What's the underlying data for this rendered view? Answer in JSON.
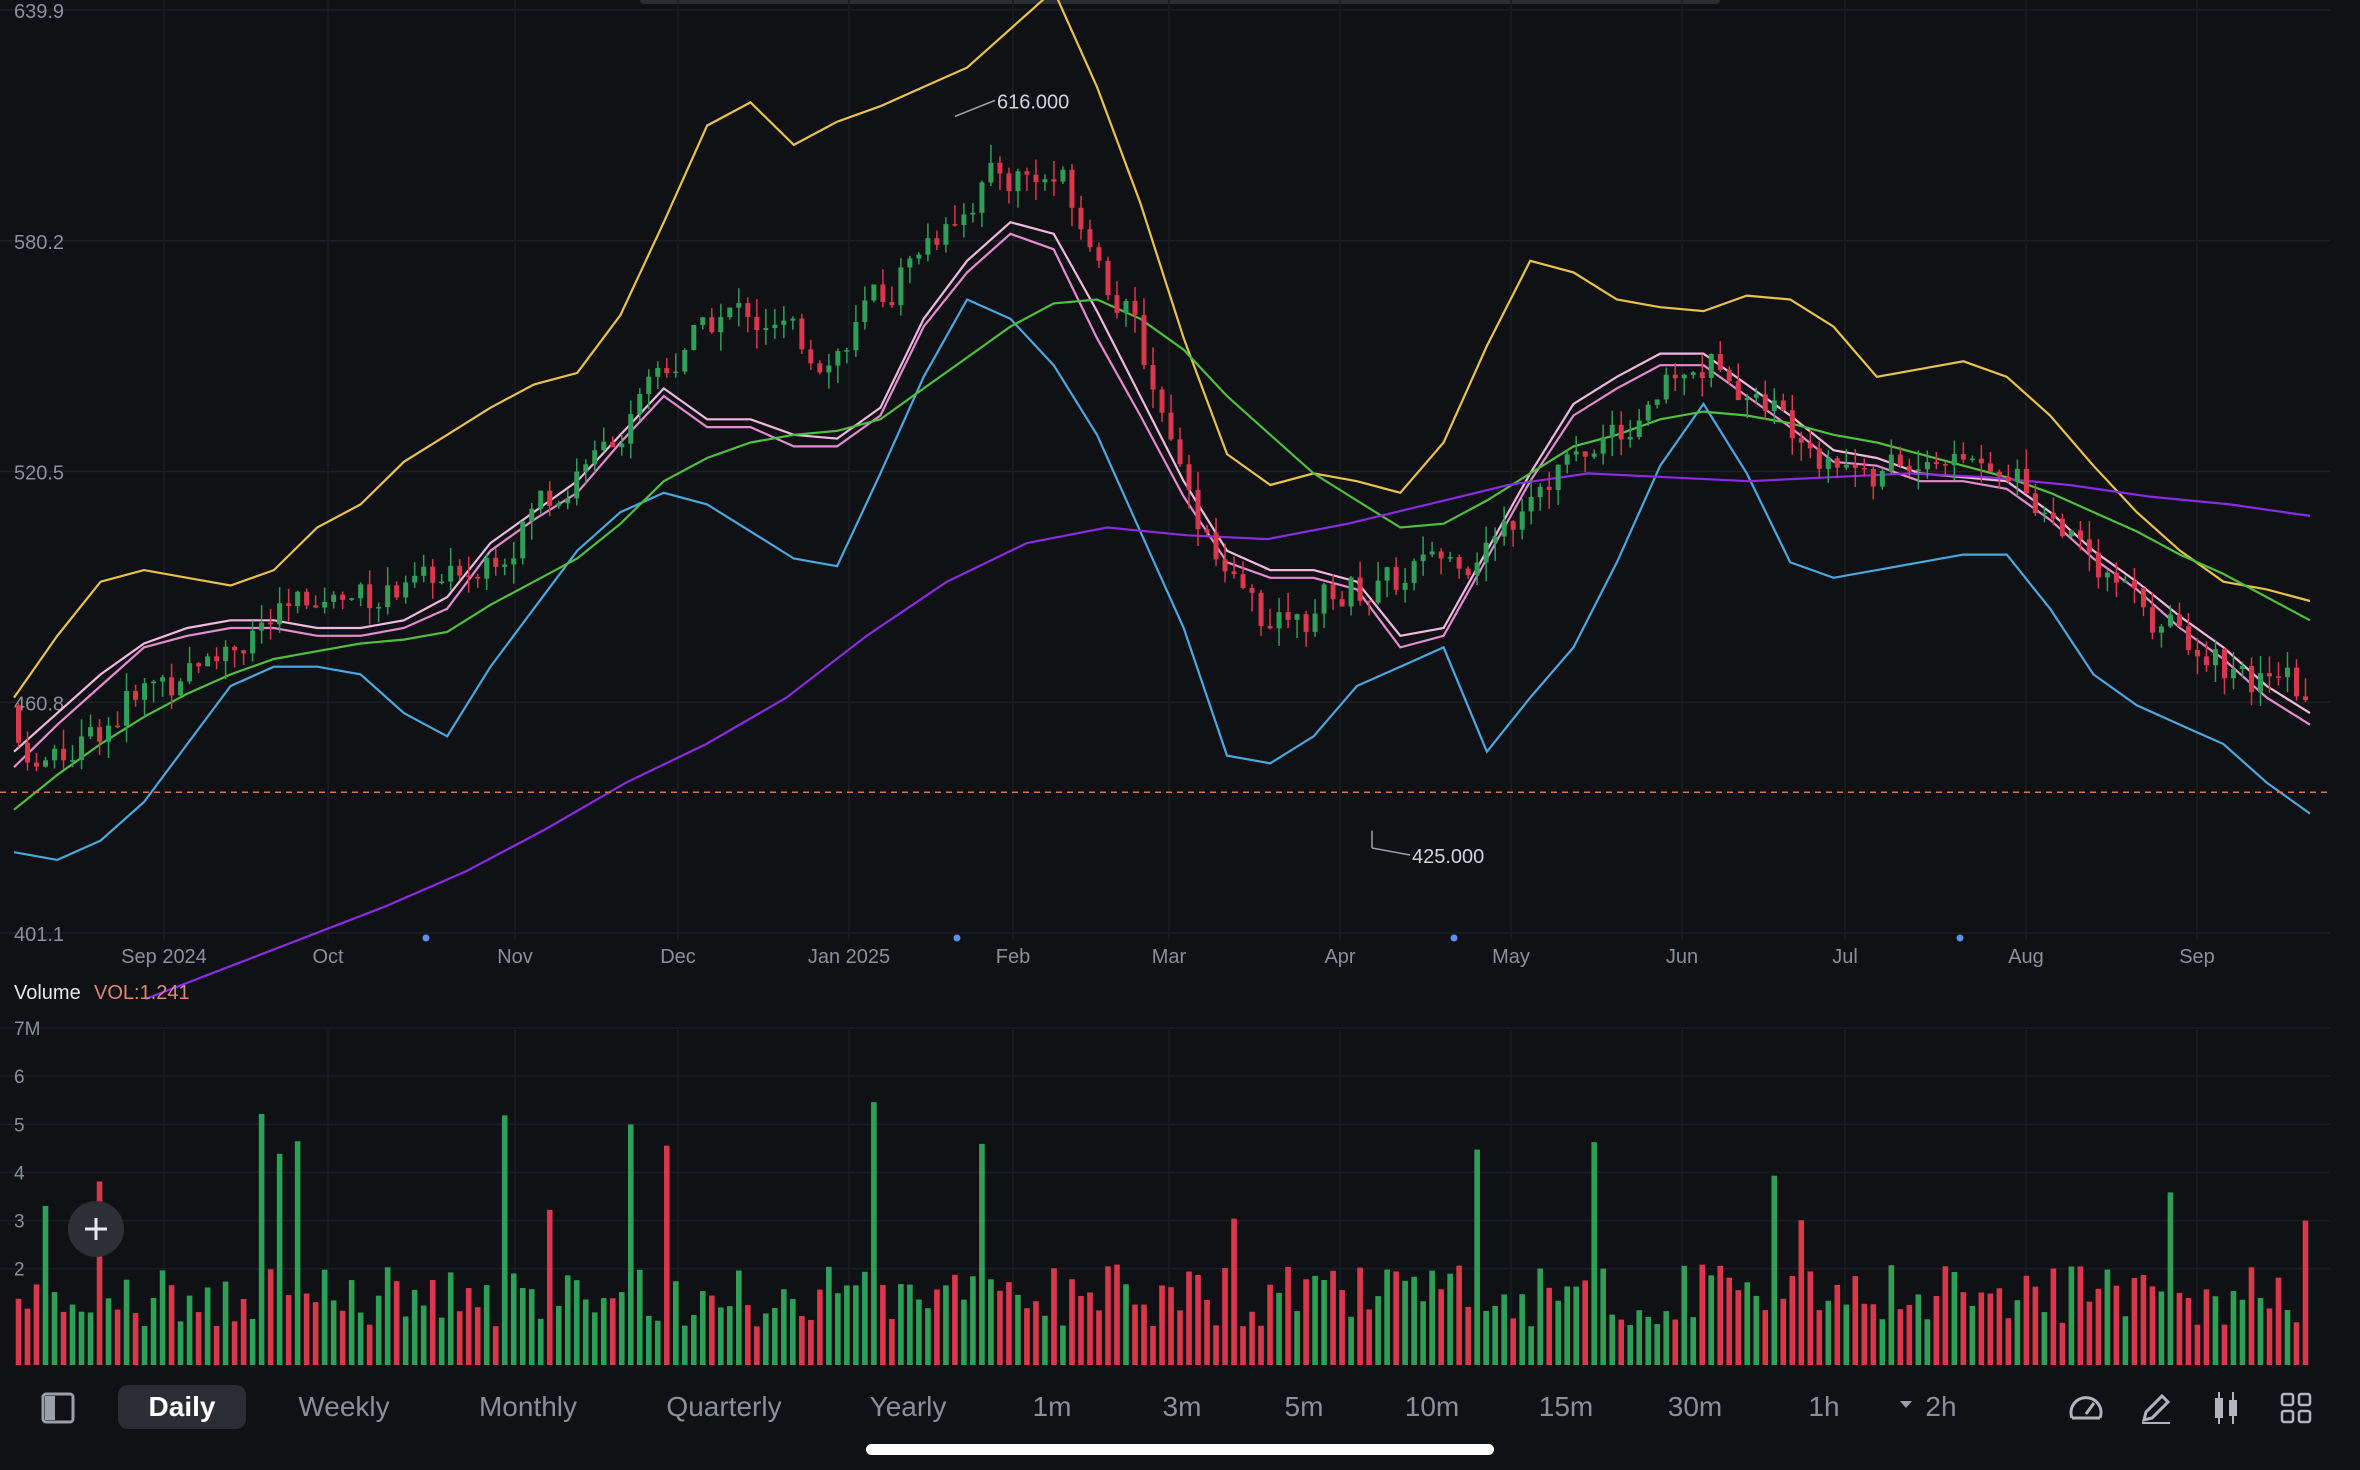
{
  "chart_data": {
    "type": "candlestick",
    "price_axis": {
      "ticks": [
        "639.9",
        "580.2",
        "520.5",
        "460.8",
        "401.1"
      ],
      "range": [
        401.1,
        639.9
      ]
    },
    "x_axis": {
      "labels": [
        "Sep 2024",
        "Oct",
        "Nov",
        "Dec",
        "Jan 2025",
        "Feb",
        "Mar",
        "Apr",
        "May",
        "Jun",
        "Jul",
        "Aug",
        "Sep"
      ]
    },
    "annotations": {
      "high_label": "616.000",
      "low_label": "425.000",
      "high": 616.0,
      "low": 425.0
    },
    "current_price_line": 437.5,
    "volume_panel": {
      "title": "Volume",
      "indicator": "VOL:1.241",
      "ticks": [
        "7M",
        "6",
        "5",
        "4",
        "3",
        "2"
      ],
      "range_millions": [
        0,
        7
      ]
    },
    "series_colors": {
      "up": "#2f9e57",
      "down": "#d9374b",
      "ma_pink": "#e58ad0",
      "ma_pink_light": "#f0b8e0",
      "ma_green": "#4fbf3e",
      "ma_purple": "#8a2be2",
      "boll_upper": "#e8c24a",
      "boll_lower": "#4aa7e0",
      "boll_mid": "#5fb4f0",
      "current_price": "#d9734a"
    },
    "overlays": [
      {
        "name": "boll_upper",
        "points": [
          [
            0,
            462
          ],
          [
            1,
            478
          ],
          [
            2,
            492
          ],
          [
            3,
            495
          ],
          [
            4,
            493
          ],
          [
            5,
            491
          ],
          [
            6,
            495
          ],
          [
            7,
            506
          ],
          [
            8,
            512
          ],
          [
            9,
            523
          ],
          [
            10,
            530
          ],
          [
            11,
            537
          ],
          [
            12,
            543
          ],
          [
            13,
            546
          ],
          [
            14,
            561
          ],
          [
            15,
            585
          ],
          [
            16,
            610
          ],
          [
            17,
            616
          ],
          [
            18,
            605
          ],
          [
            19,
            611
          ],
          [
            20,
            615
          ],
          [
            21,
            620
          ],
          [
            22,
            625
          ],
          [
            23,
            635
          ],
          [
            24,
            645
          ],
          [
            25,
            620
          ],
          [
            26,
            590
          ],
          [
            27,
            555
          ],
          [
            28,
            525
          ],
          [
            29,
            517
          ],
          [
            30,
            520
          ],
          [
            31,
            518
          ],
          [
            32,
            515
          ],
          [
            33,
            528
          ],
          [
            34,
            553
          ],
          [
            35,
            575
          ],
          [
            36,
            572
          ],
          [
            37,
            565
          ],
          [
            38,
            563
          ],
          [
            39,
            562
          ],
          [
            40,
            566
          ],
          [
            41,
            565
          ],
          [
            42,
            558
          ],
          [
            43,
            545
          ],
          [
            44,
            547
          ],
          [
            45,
            549
          ],
          [
            46,
            545
          ],
          [
            47,
            535
          ],
          [
            48,
            522
          ],
          [
            49,
            510
          ],
          [
            50,
            500
          ],
          [
            51,
            492
          ],
          [
            52,
            490
          ],
          [
            53,
            487
          ]
        ]
      },
      {
        "name": "boll_lower",
        "points": [
          [
            0,
            422
          ],
          [
            1,
            420
          ],
          [
            2,
            425
          ],
          [
            3,
            435
          ],
          [
            4,
            450
          ],
          [
            5,
            465
          ],
          [
            6,
            470
          ],
          [
            7,
            470
          ],
          [
            8,
            468
          ],
          [
            9,
            458
          ],
          [
            10,
            452
          ],
          [
            11,
            470
          ],
          [
            12,
            485
          ],
          [
            13,
            500
          ],
          [
            14,
            510
          ],
          [
            15,
            515
          ],
          [
            16,
            512
          ],
          [
            17,
            505
          ],
          [
            18,
            498
          ],
          [
            19,
            496
          ],
          [
            20,
            520
          ],
          [
            21,
            545
          ],
          [
            22,
            565
          ],
          [
            23,
            560
          ],
          [
            24,
            548
          ],
          [
            25,
            530
          ],
          [
            26,
            505
          ],
          [
            27,
            480
          ],
          [
            28,
            447
          ],
          [
            29,
            445
          ],
          [
            30,
            452
          ],
          [
            31,
            465
          ],
          [
            32,
            470
          ],
          [
            33,
            475
          ],
          [
            34,
            448
          ],
          [
            35,
            462
          ],
          [
            36,
            475
          ],
          [
            37,
            497
          ],
          [
            38,
            522
          ],
          [
            39,
            538
          ],
          [
            40,
            520
          ],
          [
            41,
            497
          ],
          [
            42,
            493
          ],
          [
            43,
            495
          ],
          [
            44,
            497
          ],
          [
            45,
            499
          ],
          [
            46,
            499
          ],
          [
            47,
            485
          ],
          [
            48,
            468
          ],
          [
            49,
            460
          ],
          [
            50,
            455
          ],
          [
            51,
            450
          ],
          [
            52,
            440
          ],
          [
            53,
            432
          ]
        ]
      },
      {
        "name": "ma_pink",
        "points": [
          [
            0,
            444
          ],
          [
            1,
            455
          ],
          [
            2,
            465
          ],
          [
            3,
            475
          ],
          [
            4,
            478
          ],
          [
            5,
            480
          ],
          [
            6,
            480
          ],
          [
            7,
            478
          ],
          [
            8,
            478
          ],
          [
            9,
            480
          ],
          [
            10,
            485
          ],
          [
            11,
            500
          ],
          [
            12,
            508
          ],
          [
            13,
            515
          ],
          [
            14,
            528
          ],
          [
            15,
            540
          ],
          [
            16,
            532
          ],
          [
            17,
            532
          ],
          [
            18,
            527
          ],
          [
            19,
            527
          ],
          [
            20,
            535
          ],
          [
            21,
            558
          ],
          [
            22,
            572
          ],
          [
            23,
            582
          ],
          [
            24,
            578
          ],
          [
            25,
            555
          ],
          [
            26,
            535
          ],
          [
            27,
            514
          ],
          [
            28,
            497
          ],
          [
            29,
            493
          ],
          [
            30,
            493
          ],
          [
            31,
            490
          ],
          [
            32,
            475
          ],
          [
            33,
            478
          ],
          [
            34,
            498
          ],
          [
            35,
            518
          ],
          [
            36,
            535
          ],
          [
            37,
            542
          ],
          [
            38,
            548
          ],
          [
            39,
            548
          ],
          [
            40,
            540
          ],
          [
            41,
            532
          ],
          [
            42,
            523
          ],
          [
            43,
            522
          ],
          [
            44,
            518
          ],
          [
            45,
            518
          ],
          [
            46,
            516
          ],
          [
            47,
            508
          ],
          [
            48,
            498
          ],
          [
            49,
            490
          ],
          [
            50,
            480
          ],
          [
            51,
            472
          ],
          [
            52,
            462
          ],
          [
            53,
            455
          ]
        ]
      },
      {
        "name": "ma_pink_light",
        "points": [
          [
            0,
            448
          ],
          [
            1,
            458
          ],
          [
            2,
            468
          ],
          [
            3,
            476
          ],
          [
            4,
            480
          ],
          [
            5,
            482
          ],
          [
            6,
            482
          ],
          [
            7,
            480
          ],
          [
            8,
            480
          ],
          [
            9,
            482
          ],
          [
            10,
            488
          ],
          [
            11,
            502
          ],
          [
            12,
            510
          ],
          [
            13,
            518
          ],
          [
            14,
            530
          ],
          [
            15,
            542
          ],
          [
            16,
            534
          ],
          [
            17,
            534
          ],
          [
            18,
            530
          ],
          [
            19,
            529
          ],
          [
            20,
            537
          ],
          [
            21,
            560
          ],
          [
            22,
            575
          ],
          [
            23,
            585
          ],
          [
            24,
            582
          ],
          [
            25,
            562
          ],
          [
            26,
            540
          ],
          [
            27,
            518
          ],
          [
            28,
            500
          ],
          [
            29,
            495
          ],
          [
            30,
            495
          ],
          [
            31,
            492
          ],
          [
            32,
            478
          ],
          [
            33,
            480
          ],
          [
            34,
            500
          ],
          [
            35,
            520
          ],
          [
            36,
            538
          ],
          [
            37,
            545
          ],
          [
            38,
            551
          ],
          [
            39,
            551
          ],
          [
            40,
            543
          ],
          [
            41,
            535
          ],
          [
            42,
            526
          ],
          [
            43,
            524
          ],
          [
            44,
            520
          ],
          [
            45,
            519
          ],
          [
            46,
            518
          ],
          [
            47,
            510
          ],
          [
            48,
            500
          ],
          [
            49,
            492
          ],
          [
            50,
            483
          ],
          [
            51,
            475
          ],
          [
            52,
            465
          ],
          [
            53,
            458
          ]
        ]
      },
      {
        "name": "ma_green",
        "points": [
          [
            0,
            433
          ],
          [
            1,
            442
          ],
          [
            2,
            450
          ],
          [
            3,
            457
          ],
          [
            4,
            463
          ],
          [
            5,
            468
          ],
          [
            6,
            472
          ],
          [
            7,
            474
          ],
          [
            8,
            476
          ],
          [
            9,
            477
          ],
          [
            10,
            479
          ],
          [
            11,
            486
          ],
          [
            12,
            492
          ],
          [
            13,
            498
          ],
          [
            14,
            507
          ],
          [
            15,
            518
          ],
          [
            16,
            524
          ],
          [
            17,
            528
          ],
          [
            18,
            530
          ],
          [
            19,
            531
          ],
          [
            20,
            534
          ],
          [
            21,
            542
          ],
          [
            22,
            550
          ],
          [
            23,
            558
          ],
          [
            24,
            564
          ],
          [
            25,
            565
          ],
          [
            26,
            560
          ],
          [
            27,
            552
          ],
          [
            28,
            540
          ],
          [
            29,
            530
          ],
          [
            30,
            520
          ],
          [
            31,
            513
          ],
          [
            32,
            506
          ],
          [
            33,
            507
          ],
          [
            34,
            513
          ],
          [
            35,
            520
          ],
          [
            36,
            527
          ],
          [
            37,
            530
          ],
          [
            38,
            534
          ],
          [
            39,
            536
          ],
          [
            40,
            535
          ],
          [
            41,
            533
          ],
          [
            42,
            530
          ],
          [
            43,
            528
          ],
          [
            44,
            525
          ],
          [
            45,
            522
          ],
          [
            46,
            519
          ],
          [
            47,
            515
          ],
          [
            48,
            510
          ],
          [
            49,
            505
          ],
          [
            50,
            499
          ],
          [
            51,
            494
          ],
          [
            52,
            488
          ],
          [
            53,
            482
          ]
        ]
      },
      {
        "name": "ma_purple",
        "points": [
          [
            0,
            384
          ],
          [
            3,
            392
          ],
          [
            6,
            400
          ],
          [
            9,
            408
          ],
          [
            12,
            417
          ],
          [
            15,
            428
          ],
          [
            18,
            440
          ],
          [
            21,
            450
          ],
          [
            24,
            462
          ],
          [
            27,
            478
          ],
          [
            30,
            492
          ],
          [
            33,
            502
          ],
          [
            36,
            506
          ],
          [
            39,
            504
          ],
          [
            42,
            503
          ],
          [
            45,
            507
          ],
          [
            48,
            512
          ],
          [
            51,
            517
          ],
          [
            54,
            520
          ],
          [
            57,
            519
          ],
          [
            60,
            518
          ],
          [
            63,
            519
          ],
          [
            66,
            520
          ],
          [
            69,
            519
          ],
          [
            72,
            517
          ],
          [
            75,
            514
          ],
          [
            78,
            512
          ],
          [
            81,
            509
          ]
        ]
      }
    ]
  },
  "toolbar": {
    "timeframes": [
      "Daily",
      "Weekly",
      "Monthly",
      "Quarterly",
      "Yearly",
      "1m",
      "3m",
      "5m",
      "10m",
      "15m",
      "30m",
      "1h",
      "2h"
    ],
    "active": "Daily"
  },
  "icons": {
    "panel_toggle": "sidebar-panel-icon",
    "add": "plus-icon",
    "speedometer": "gauge-icon",
    "draw": "pencil-icon",
    "candles": "candlestick-icon",
    "grid": "grid-icon",
    "dropdown": "caret-down-icon"
  }
}
